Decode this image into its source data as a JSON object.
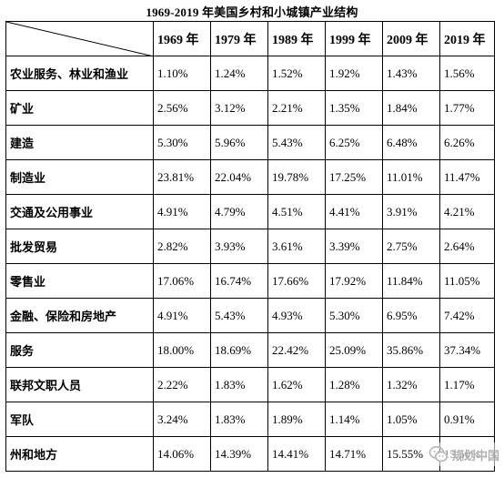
{
  "title": "1969-2019 年美国乡村和小城镇产业结构",
  "columns": [
    "1969 年",
    "1979 年",
    "1989 年",
    "1999 年",
    "2009 年",
    "2019 年"
  ],
  "rows": [
    {
      "label": "农业服务、林业和渔业",
      "values": [
        "1.10%",
        "1.24%",
        "1.52%",
        "1.92%",
        "1.43%",
        "1.56%"
      ]
    },
    {
      "label": "矿业",
      "values": [
        "2.56%",
        "3.12%",
        "2.21%",
        "1.35%",
        "1.84%",
        "1.77%"
      ]
    },
    {
      "label": "建造",
      "values": [
        "5.30%",
        "5.96%",
        "5.43%",
        "6.25%",
        "6.48%",
        "6.26%"
      ]
    },
    {
      "label": "制造业",
      "values": [
        "23.81%",
        "22.04%",
        "19.78%",
        "17.25%",
        "11.01%",
        "11.47%"
      ]
    },
    {
      "label": "交通及公用事业",
      "values": [
        "4.91%",
        "4.79%",
        "4.51%",
        "4.41%",
        "3.91%",
        "4.21%"
      ]
    },
    {
      "label": "批发贸易",
      "values": [
        "2.82%",
        "3.93%",
        "3.61%",
        "3.39%",
        "2.75%",
        "2.64%"
      ]
    },
    {
      "label": "零售业",
      "values": [
        "17.06%",
        "16.74%",
        "17.66%",
        "17.92%",
        "11.84%",
        "11.05%"
      ]
    },
    {
      "label": "金融、保险和房地产",
      "values": [
        "4.91%",
        "5.43%",
        "4.93%",
        "5.30%",
        "6.95%",
        "7.42%"
      ]
    },
    {
      "label": "服务",
      "values": [
        "18.00%",
        "18.69%",
        "22.42%",
        "25.09%",
        "35.86%",
        "37.34%"
      ]
    },
    {
      "label": "联邦文职人员",
      "values": [
        "2.22%",
        "1.83%",
        "1.62%",
        "1.28%",
        "1.32%",
        "1.17%"
      ]
    },
    {
      "label": "军队",
      "values": [
        "3.24%",
        "1.83%",
        "1.89%",
        "1.14%",
        "1.05%",
        "0.91%"
      ]
    },
    {
      "label": "州和地方",
      "values": [
        "14.06%",
        "14.39%",
        "14.41%",
        "14.71%",
        "15.55%",
        "15.50%"
      ]
    }
  ],
  "watermark": {
    "text": "规划中国",
    "icon": "wechat-icon"
  }
}
